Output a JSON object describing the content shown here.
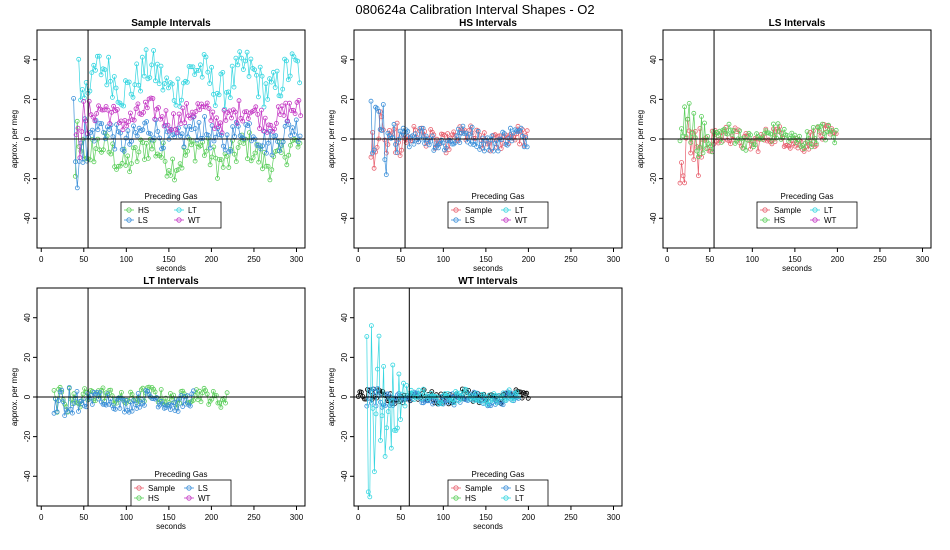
{
  "page": {
    "title": "080624a   Calibration Interval Shapes - O2"
  },
  "colors": {
    "Sample": "#e8616f",
    "HS": "#5dcf5d",
    "LS": "#3b8fd9",
    "LT": "#35d6e0",
    "WT": "#c438c4",
    "black": "#000000"
  },
  "chart_data": [
    {
      "type": "scatter",
      "title": "Sample Intervals",
      "xlabel": "seconds",
      "ylabel": "approx. per meg",
      "xlim": [
        -5,
        310
      ],
      "ylim": [
        -55,
        55
      ],
      "xticks": [
        0,
        50,
        100,
        150,
        200,
        250,
        300
      ],
      "yticks": [
        -40,
        -20,
        0,
        20,
        40
      ],
      "vline": 55,
      "hline": 0,
      "legend": {
        "title": "Preceding Gas",
        "position": "bottom-center",
        "entries": [
          "HS",
          "LT",
          "LS",
          "WT"
        ]
      },
      "series": [
        {
          "name": "HS",
          "xmax": 305,
          "start": 40,
          "amp": 12,
          "noise": 8,
          "offset": -8,
          "spike": 50
        },
        {
          "name": "LT",
          "xmax": 305,
          "start": 44,
          "amp": 15,
          "noise": 10,
          "offset": 30,
          "spike": 60
        },
        {
          "name": "LS",
          "xmax": 305,
          "start": 38,
          "amp": 10,
          "noise": 7,
          "offset": 2,
          "spike": 55
        },
        {
          "name": "WT",
          "xmax": 305,
          "start": 41,
          "amp": 8,
          "noise": 6,
          "offset": 12,
          "spike": 45
        }
      ]
    },
    {
      "type": "scatter",
      "title": "HS Intervals",
      "xlabel": "seconds",
      "ylabel": "approx. per meg",
      "xlim": [
        -5,
        310
      ],
      "ylim": [
        -55,
        55
      ],
      "xticks": [
        0,
        50,
        100,
        150,
        200,
        250,
        300
      ],
      "yticks": [
        -40,
        -20,
        0,
        20,
        40
      ],
      "vline": 55,
      "hline": 0,
      "legend": {
        "title": "Preceding Gas",
        "position": "bottom-center",
        "entries": [
          "Sample",
          "LT",
          "LS",
          "WT"
        ]
      },
      "series": [
        {
          "name": "Sample",
          "xmax": 200,
          "start": 15,
          "amp": 6,
          "noise": 5,
          "offset": 0,
          "spike": 20
        },
        {
          "name": "LS",
          "xmax": 200,
          "start": 15,
          "amp": 6,
          "noise": 5,
          "offset": 0,
          "spike": 25
        }
      ]
    },
    {
      "type": "scatter",
      "title": "LS Intervals",
      "xlabel": "seconds",
      "ylabel": "approx. per meg",
      "xlim": [
        -5,
        310
      ],
      "ylim": [
        -55,
        55
      ],
      "xticks": [
        0,
        50,
        100,
        150,
        200,
        250,
        300
      ],
      "yticks": [
        -40,
        -20,
        0,
        20,
        40
      ],
      "vline": 55,
      "hline": 0,
      "legend": {
        "title": "Preceding Gas",
        "position": "bottom-center",
        "entries": [
          "Sample",
          "LT",
          "HS",
          "WT"
        ]
      },
      "series": [
        {
          "name": "Sample",
          "xmax": 200,
          "start": 15,
          "amp": 6,
          "noise": 5,
          "offset": 0,
          "spike": 25
        },
        {
          "name": "HS",
          "xmax": 200,
          "start": 15,
          "amp": 6,
          "noise": 5,
          "offset": 1,
          "spike": 20
        }
      ]
    },
    {
      "type": "scatter",
      "title": "LT Intervals",
      "xlabel": "seconds",
      "ylabel": "approx. per meg",
      "xlim": [
        -5,
        310
      ],
      "ylim": [
        -55,
        55
      ],
      "xticks": [
        0,
        50,
        100,
        150,
        200,
        250,
        300
      ],
      "yticks": [
        -40,
        -20,
        0,
        20,
        40
      ],
      "vline": 55,
      "hline": 0,
      "legend": {
        "title": "Preceding Gas",
        "position": "bottom-center",
        "entries": [
          "Sample",
          "LS",
          "HS",
          "WT"
        ]
      },
      "series": [
        {
          "name": "HS",
          "xmax": 220,
          "start": 15,
          "amp": 4,
          "noise": 4,
          "offset": 0,
          "spike": 8
        },
        {
          "name": "LS",
          "xmax": 180,
          "start": 15,
          "amp": 5,
          "noise": 4,
          "offset": -2,
          "spike": 12
        }
      ]
    },
    {
      "type": "scatter",
      "title": "WT Intervals",
      "xlabel": "seconds",
      "ylabel": "approx. per meg",
      "xlim": [
        -5,
        310
      ],
      "ylim": [
        -55,
        55
      ],
      "xticks": [
        0,
        50,
        100,
        150,
        200,
        250,
        300
      ],
      "yticks": [
        -40,
        -20,
        0,
        20,
        40
      ],
      "vline": 60,
      "hline": 0,
      "legend": {
        "title": "Preceding Gas",
        "position": "bottom-center",
        "entries": [
          "Sample",
          "LS",
          "HS",
          "LT"
        ]
      },
      "series": [
        {
          "name": "black",
          "xmax": 200,
          "start": 0,
          "amp": 3,
          "noise": 3,
          "offset": 0,
          "spike": 0
        },
        {
          "name": "LS",
          "xmax": 190,
          "start": 10,
          "amp": 3,
          "noise": 3,
          "offset": -1,
          "spike": 5
        },
        {
          "name": "LT",
          "xmax": 190,
          "start": 10,
          "amp": 3,
          "noise": 3,
          "offset": 0,
          "spike": 55
        }
      ]
    }
  ]
}
